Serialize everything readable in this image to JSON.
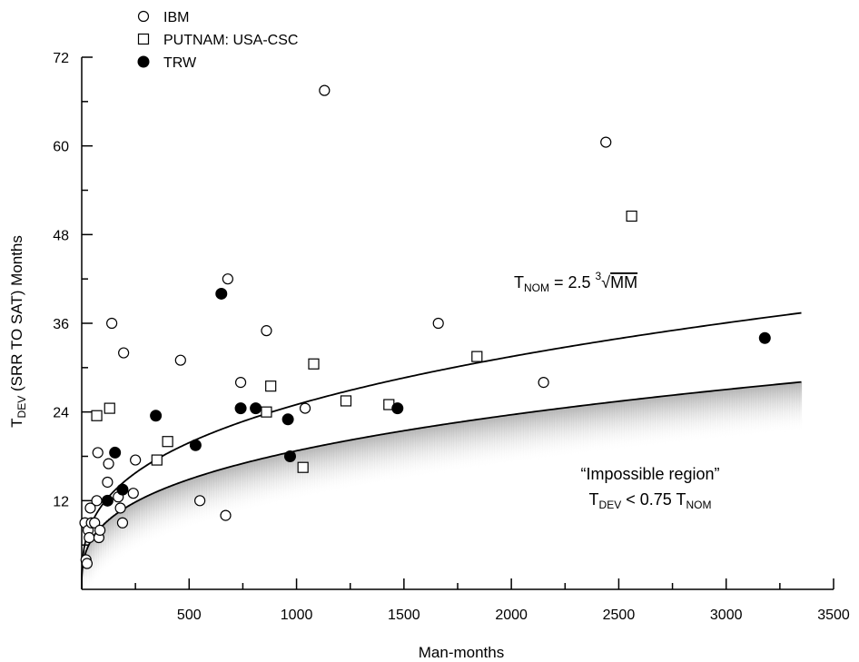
{
  "chart_data": {
    "type": "scatter",
    "title": "",
    "xlabel": "Man-months",
    "ylabel": {
      "t": "T",
      "sub": "DEV",
      "rest": " (SRR TO SAT) Months"
    },
    "xlim": [
      0,
      3500
    ],
    "ylim": [
      0,
      72
    ],
    "xticks": [
      500,
      1000,
      1500,
      2000,
      2500,
      3000,
      3500
    ],
    "yticks": [
      12,
      24,
      36,
      48,
      60,
      72
    ],
    "grid": false,
    "legend_position": "top-left",
    "series": [
      {
        "name": "IBM",
        "marker": "open-circle",
        "points": [
          [
            15,
            9
          ],
          [
            20,
            4
          ],
          [
            25,
            3.5
          ],
          [
            30,
            8
          ],
          [
            35,
            7
          ],
          [
            40,
            11
          ],
          [
            45,
            9
          ],
          [
            60,
            9
          ],
          [
            70,
            12
          ],
          [
            75,
            18.5
          ],
          [
            80,
            7
          ],
          [
            85,
            8
          ],
          [
            120,
            14.5
          ],
          [
            125,
            17
          ],
          [
            140,
            36
          ],
          [
            170,
            12.5
          ],
          [
            180,
            11
          ],
          [
            190,
            9
          ],
          [
            195,
            32
          ],
          [
            240,
            13
          ],
          [
            250,
            17.5
          ],
          [
            460,
            31
          ],
          [
            550,
            12
          ],
          [
            670,
            10
          ],
          [
            680,
            42
          ],
          [
            740,
            28
          ],
          [
            860,
            35
          ],
          [
            1040,
            24.5
          ],
          [
            1130,
            67.5
          ],
          [
            1660,
            36
          ],
          [
            2150,
            28
          ],
          [
            2440,
            60.5
          ]
        ]
      },
      {
        "name": "PUTNAM: USA-CSC",
        "marker": "open-square",
        "points": [
          [
            70,
            23.5
          ],
          [
            130,
            24.5
          ],
          [
            350,
            17.5
          ],
          [
            400,
            20
          ],
          [
            860,
            24
          ],
          [
            880,
            27.5
          ],
          [
            1030,
            16.5
          ],
          [
            1080,
            30.5
          ],
          [
            1230,
            25.5
          ],
          [
            1430,
            25
          ],
          [
            1840,
            31.5
          ],
          [
            2560,
            50.5
          ]
        ]
      },
      {
        "name": "TRW",
        "marker": "filled-circle",
        "points": [
          [
            120,
            12
          ],
          [
            155,
            18.5
          ],
          [
            190,
            13.5
          ],
          [
            345,
            23.5
          ],
          [
            530,
            19.5
          ],
          [
            650,
            40
          ],
          [
            740,
            24.5
          ],
          [
            810,
            24.5
          ],
          [
            960,
            23
          ],
          [
            970,
            18
          ],
          [
            1470,
            24.5
          ],
          [
            3180,
            34
          ]
        ]
      }
    ],
    "curves": [
      {
        "name": "T_NOM",
        "formula_coefficient": 2.5,
        "formula_root": 3,
        "x_end": 3350
      },
      {
        "name": "T_DEV_min",
        "formula_coefficient": 1.875,
        "formula_root": 3,
        "x_end": 3350,
        "shaded_below": true
      }
    ],
    "annotations": {
      "tnom_label": {
        "t": "T",
        "sub": "NOM",
        "eq": " = 2.5 ",
        "root_index": "3",
        "radical": "√",
        "radicand": "MM"
      },
      "region_title": "“Impossible region”",
      "region_formula": {
        "t1": "T",
        "sub1": "DEV",
        "mid": " < 0.75 T",
        "sub2": "NOM"
      }
    }
  }
}
